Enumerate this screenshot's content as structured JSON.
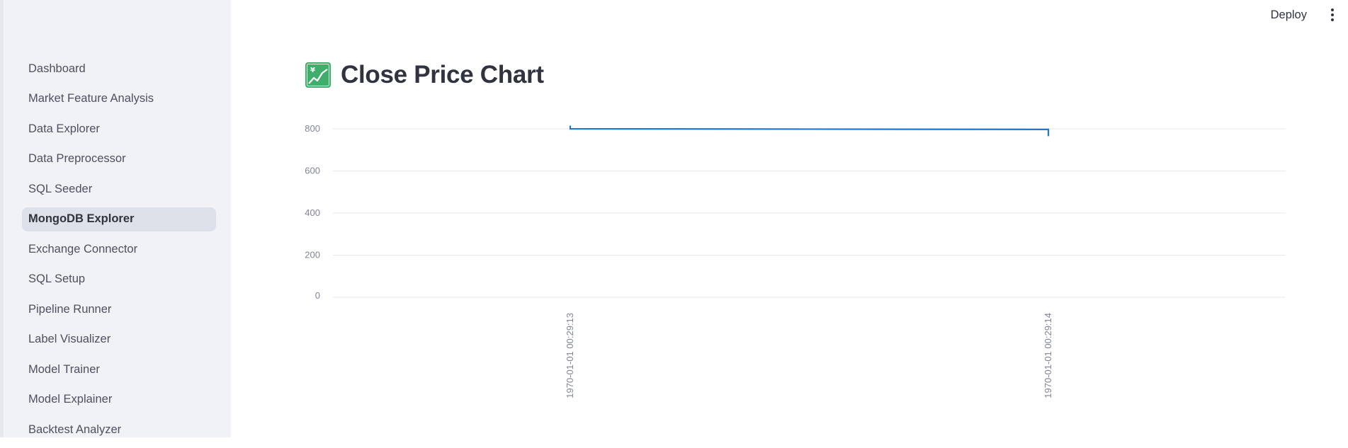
{
  "sidebar": {
    "items": [
      {
        "label": "Dashboard",
        "active": false
      },
      {
        "label": "Market Feature Analysis",
        "active": false
      },
      {
        "label": "Data Explorer",
        "active": false
      },
      {
        "label": "Data Preprocessor",
        "active": false
      },
      {
        "label": "SQL Seeder",
        "active": false
      },
      {
        "label": "MongoDB Explorer",
        "active": true
      },
      {
        "label": "Exchange Connector",
        "active": false
      },
      {
        "label": "SQL Setup",
        "active": false
      },
      {
        "label": "Pipeline Runner",
        "active": false
      },
      {
        "label": "Label Visualizer",
        "active": false
      },
      {
        "label": "Model Trainer",
        "active": false
      },
      {
        "label": "Model Explainer",
        "active": false
      },
      {
        "label": "Backtest Analyzer",
        "active": false
      }
    ]
  },
  "header": {
    "deploy_label": "Deploy"
  },
  "main": {
    "title": "Close Price Chart",
    "title_icon": "chart-increasing-with-yen-icon"
  },
  "colors": {
    "line": "#1f77d0",
    "grid": "#e6e9ef",
    "sidebar_bg": "#f0f2f6",
    "active_bg": "#dde1ea"
  },
  "chart_data": {
    "type": "line",
    "x": [
      "1970-01-01 00:29:13",
      "1970-01-01 00:29:13",
      "1970-01-01 00:29:14",
      "1970-01-01 00:29:14"
    ],
    "values": [
      815,
      800,
      797,
      765
    ],
    "x_ticks": [
      "1970-01-01 00:29:13",
      "1970-01-01 00:29:14"
    ],
    "y_ticks": [
      0,
      200,
      400,
      600,
      800
    ],
    "ylim": [
      0,
      800
    ],
    "title": "",
    "xlabel": "",
    "ylabel": "",
    "grid": true
  }
}
